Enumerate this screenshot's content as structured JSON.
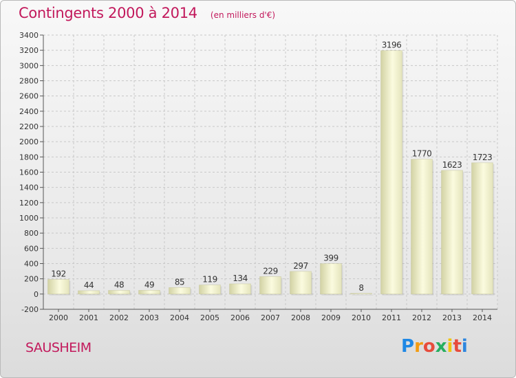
{
  "chart_data": {
    "type": "bar",
    "title": "Contingents 2000 à 2014",
    "subtitle": "(en milliers d'€)",
    "categories": [
      "2000",
      "2001",
      "2002",
      "2003",
      "2004",
      "2005",
      "2006",
      "2007",
      "2008",
      "2009",
      "2010",
      "2011",
      "2012",
      "2013",
      "2014"
    ],
    "values": [
      192,
      44,
      48,
      49,
      85,
      119,
      134,
      229,
      297,
      399,
      8,
      3196,
      1770,
      1623,
      1723
    ],
    "ylim": [
      -200,
      3400
    ],
    "yticks": [
      "-200",
      "0",
      "200",
      "400",
      "600",
      "800",
      "1000",
      "1200",
      "1400",
      "1600",
      "1800",
      "2000",
      "2200",
      "2400",
      "2600",
      "2800",
      "3000",
      "3200",
      "3400"
    ],
    "grid": true,
    "xlabel": "",
    "ylabel": ""
  },
  "footer": {
    "city": "SAUSHEIM"
  },
  "logo": {
    "letters": [
      "P",
      "r",
      "o",
      "x",
      "i",
      "t",
      "i"
    ],
    "colors": [
      "#1e88e5",
      "#f39c12",
      "#e74c3c",
      "#27ae60",
      "#f1c40f",
      "#e74c3c",
      "#2e86de"
    ]
  },
  "colors": {
    "accent": "#c2185b",
    "bar_light": "#fcfce0",
    "bar_dark": "#d6d6a8",
    "grid": "#c8c8c8"
  }
}
